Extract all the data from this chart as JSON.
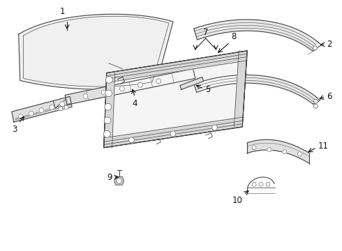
{
  "bg_color": "#ffffff",
  "line_color": "#444444",
  "label_color": "#111111",
  "lw": 0.8,
  "fs": 8.5
}
